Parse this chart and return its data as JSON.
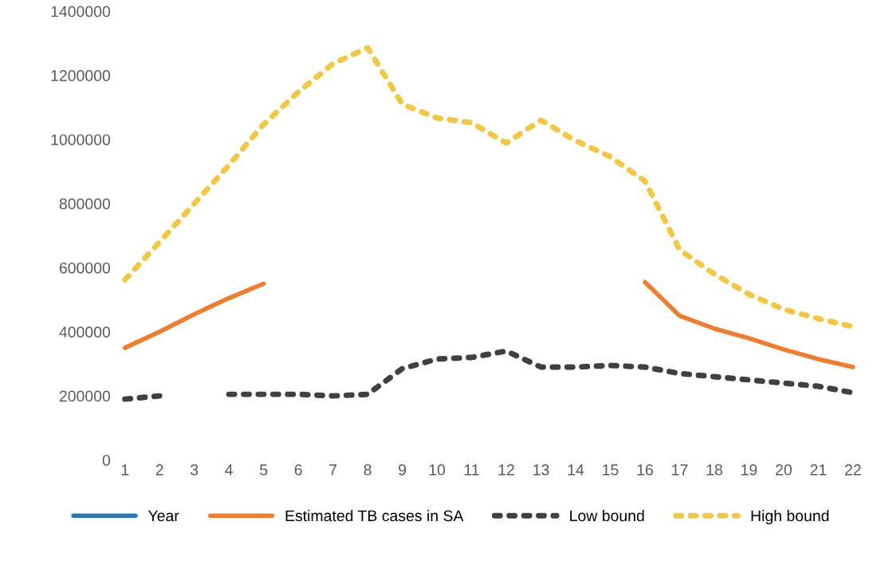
{
  "chart_data": {
    "type": "line",
    "categories": [
      "1",
      "2",
      "3",
      "4",
      "5",
      "6",
      "7",
      "8",
      "9",
      "10",
      "11",
      "12",
      "13",
      "14",
      "15",
      "16",
      "17",
      "18",
      "19",
      "20",
      "21",
      "22"
    ],
    "series": [
      {
        "name": "Year",
        "color": "#2e75b6",
        "line_style": "solid",
        "values": [
          null,
          null,
          null,
          null,
          null,
          null,
          null,
          null,
          null,
          null,
          null,
          null,
          null,
          null,
          null,
          null,
          null,
          null,
          null,
          null,
          null,
          null
        ]
      },
      {
        "name": "Estimated TB cases in SA",
        "color": "#ed7d31",
        "line_style": "solid",
        "values": [
          350000,
          400000,
          455000,
          505000,
          550000,
          null,
          null,
          null,
          null,
          null,
          null,
          null,
          null,
          null,
          null,
          555000,
          450000,
          410000,
          380000,
          345000,
          315000,
          290000
        ]
      },
      {
        "name": "Low bound",
        "color": "#404040",
        "line_style": "dotted",
        "values": [
          190000,
          200000,
          null,
          205000,
          205000,
          205000,
          200000,
          205000,
          285000,
          315000,
          320000,
          340000,
          290000,
          290000,
          295000,
          290000,
          270000,
          260000,
          250000,
          240000,
          230000,
          210000
        ]
      },
      {
        "name": "High bound",
        "color": "#f2c746",
        "line_style": "dotted",
        "values": [
          562000,
          680000,
          800000,
          920000,
          1047000,
          1148000,
          1236000,
          1286000,
          1110000,
          1067000,
          1052000,
          989000,
          1060000,
          996000,
          946000,
          870000,
          656000,
          580000,
          517000,
          470000,
          441000,
          416000
        ]
      }
    ],
    "ylim": [
      0,
      1400000
    ],
    "yticks": [
      0,
      200000,
      400000,
      600000,
      800000,
      1000000,
      1200000,
      1400000
    ],
    "legend": "bottom",
    "marker": "none"
  }
}
